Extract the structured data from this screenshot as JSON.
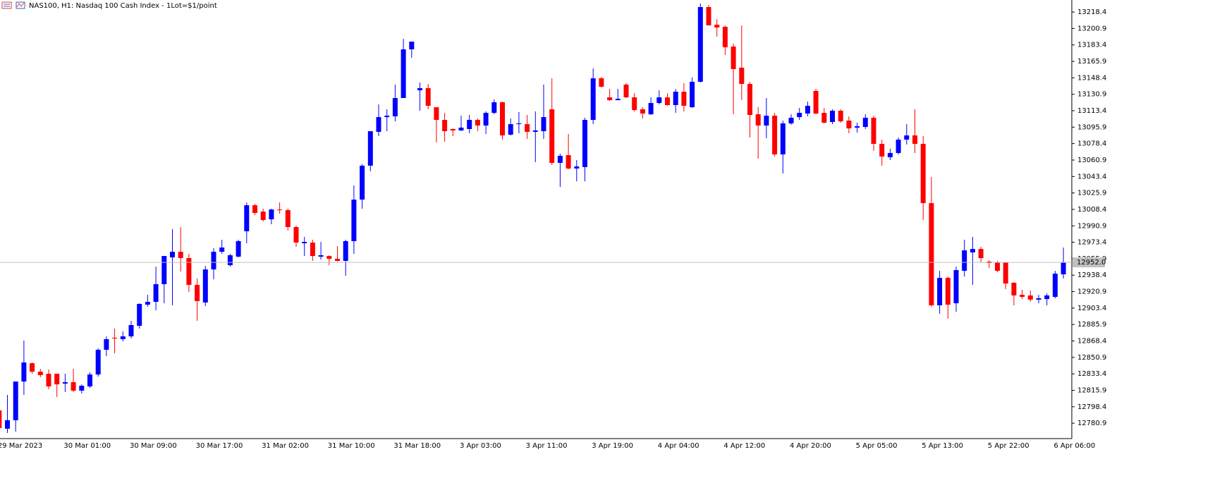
{
  "chart_data": {
    "type": "candlestick",
    "title": "NAS100, H1:  Nasdaq 100 Cash Index - 1Lot=$1/point",
    "up_color": "#0000ff",
    "down_color": "#ff0000",
    "current_price": {
      "value": 12952.0,
      "label": "12952.0"
    },
    "ylim": [
      12764.5,
      13231.2
    ],
    "yticks": [
      12780.9,
      12798.4,
      12815.9,
      12833.4,
      12850.9,
      12868.4,
      12885.9,
      12903.4,
      12920.9,
      12938.4,
      12955.9,
      12973.4,
      12990.9,
      13008.4,
      13025.9,
      13043.4,
      13060.9,
      13078.4,
      13095.9,
      13113.4,
      13130.9,
      13148.4,
      13165.9,
      13183.4,
      13200.9,
      13218.4
    ],
    "categories": [
      "29 Mar 2023",
      null,
      null,
      null,
      null,
      null,
      null,
      null,
      "30 Mar 01:00",
      null,
      null,
      null,
      null,
      null,
      null,
      null,
      "30 Mar 09:00",
      null,
      null,
      null,
      null,
      null,
      null,
      null,
      "30 Mar 17:00",
      null,
      null,
      null,
      null,
      null,
      null,
      null,
      "31 Mar 02:00",
      null,
      null,
      null,
      null,
      null,
      null,
      null,
      "31 Mar 10:00",
      null,
      null,
      null,
      null,
      null,
      null,
      null,
      "31 Mar 18:00",
      null,
      null,
      null,
      null,
      null,
      null,
      null,
      "3 Apr 03:00",
      null,
      null,
      null,
      null,
      null,
      null,
      null,
      "3 Apr 11:00",
      null,
      null,
      null,
      null,
      null,
      null,
      null,
      "3 Apr 19:00",
      null,
      null,
      null,
      null,
      null,
      null,
      null,
      "4 Apr 04:00",
      null,
      null,
      null,
      null,
      null,
      null,
      null,
      "4 Apr 12:00",
      null,
      null,
      null,
      null,
      null,
      null,
      null,
      "4 Apr 20:00",
      null,
      null,
      null,
      null,
      null,
      null,
      null,
      "5 Apr 05:00",
      null,
      null,
      null,
      null,
      null,
      null,
      null,
      "5 Apr 13:00",
      null,
      null,
      null,
      null,
      null,
      null,
      null,
      "5 Apr 22:00",
      null,
      null,
      null,
      null,
      null,
      null,
      null,
      "6 Apr 06:00",
      null
    ],
    "open": [
      12794.5,
      12775.0,
      12784.0,
      12825.2,
      12844.7,
      12835.7,
      12833.5,
      12833.5,
      12823.0,
      12824.5,
      12815.5,
      12820.0,
      12832.7,
      12859.0,
      12871.8,
      12870.3,
      12873.3,
      12884.5,
      12907.0,
      12910.0,
      12928.8,
      12957.3,
      12963.3,
      12956.6,
      12928.0,
      12909.3,
      12944.5,
      12963.3,
      12949.0,
      12958.1,
      12985.1,
      13012.8,
      13006.1,
      12997.8,
      13008.3,
      13007.6,
      12989.6,
      12972.3,
      12973.1,
      12958.1,
      12958.8,
      12955.8,
      12953.6,
      12974.6,
      13018.8,
      13054.9,
      13090.9,
      13106.6,
      13107.4,
      13126.9,
      13178.7,
      13135.1,
      13137.4,
      13117.1,
      13103.6,
      13093.9,
      13092.4,
      13093.9,
      13103.6,
      13097.6,
      13111.1,
      13122.4,
      13087.9,
      13099.1,
      13099.1,
      13090.9,
      13091.6,
      13114.9,
      13057.9,
      13066.1,
      13051.9,
      13053.4,
      13103.6,
      13147.9,
      13127.6,
      13124.6,
      13141.2,
      13127.6,
      13114.9,
      13109.6,
      13121.6,
      13127.6,
      13119.4,
      13133.6,
      13117.1,
      13144.2,
      13223.7,
      13204.9,
      13202.7,
      13181.7,
      13159.2,
      13141.9,
      13109.6,
      13097.6,
      13108.1,
      13066.9,
      13099.9,
      13106.6,
      13110.4,
      13134.4,
      13111.1,
      13101.4,
      13113.4,
      13102.9,
      13095.4,
      13096.1,
      13105.9,
      13078.1,
      13063.9,
      13068.4,
      13082.6,
      13087.1,
      13078.1,
      13015.1,
      12906.3,
      12935.5,
      12908.5,
      12943.0,
      12962.6,
      12966.3,
      12952.8,
      12952.1,
      12952.1,
      12930.3,
      12917.5,
      12916.8,
      12912.3,
      12913.0,
      12915.3,
      12939.3
    ],
    "high": [
      12796.0,
      12811.0,
      12825.2,
      12868.8,
      12845.5,
      12838.7,
      12838.0,
      12833.5,
      12833.5,
      12838.7,
      12822.2,
      12835.0,
      12860.5,
      12873.3,
      12881.5,
      12878.5,
      12889.8,
      12908.5,
      12917.5,
      12947.5,
      12958.8,
      12987.3,
      12989.6,
      12961.1,
      12934.8,
      12948.3,
      12967.1,
      12976.1,
      12961.1,
      12976.1,
      13015.8,
      13014.3,
      13009.1,
      13009.1,
      13015.8,
      13009.1,
      12991.1,
      12979.1,
      12976.1,
      12973.8,
      12959.6,
      12969.3,
      12976.1,
      13033.8,
      13056.4,
      13091.6,
      13120.1,
      13114.9,
      13141.2,
      13189.9,
      13186.9,
      13143.4,
      13141.9,
      13117.1,
      13111.1,
      13094.6,
      13108.1,
      13108.9,
      13105.1,
      13112.6,
      13125.4,
      13123.1,
      13105.1,
      13111.9,
      13108.9,
      13112.6,
      13141.2,
      13147.9,
      13067.6,
      13088.6,
      13060.9,
      13105.9,
      13158.4,
      13149.4,
      13136.6,
      13136.6,
      13142.7,
      13132.1,
      13117.1,
      13127.6,
      13135.1,
      13132.1,
      13136.6,
      13142.7,
      13148.7,
      13227.5,
      13225.9,
      13210.9,
      13204.2,
      13184.7,
      13204.2,
      13144.2,
      13117.1,
      13126.9,
      13111.1,
      13102.9,
      13109.6,
      13116.4,
      13123.1,
      13136.6,
      13116.4,
      13114.9,
      13114.9,
      13107.4,
      13100.6,
      13109.6,
      13108.1,
      13082.6,
      13072.9,
      13084.9,
      13099.1,
      13114.9,
      13086.4,
      13042.8,
      12943.0,
      12937.0,
      12947.5,
      12976.1,
      12979.1,
      12968.6,
      12954.3,
      12953.6,
      12952.1,
      12931.0,
      12922.8,
      12922.0,
      12917.5,
      12919.0,
      12943.0,
      12967.8
    ],
    "low": [
      12774.2,
      12770.5,
      12772.0,
      12811.0,
      12833.5,
      12829.7,
      12817.0,
      12808.7,
      12814.0,
      12814.0,
      12812.5,
      12818.5,
      12830.5,
      12852.2,
      12855.3,
      12868.0,
      12871.0,
      12881.5,
      12904.8,
      12901.0,
      12908.5,
      12906.3,
      12942.3,
      12920.5,
      12889.8,
      12905.5,
      12934.0,
      12961.1,
      12947.5,
      12957.3,
      12972.3,
      13002.3,
      12995.6,
      12992.6,
      13003.8,
      12985.8,
      12968.6,
      12958.8,
      12953.6,
      12955.1,
      12949.0,
      12952.8,
      12937.8,
      12961.1,
      13009.1,
      13048.9,
      13086.4,
      13091.6,
      13102.1,
      13126.9,
      13169.7,
      13113.4,
      13114.9,
      13079.6,
      13080.4,
      13086.4,
      13091.6,
      13089.4,
      13091.6,
      13088.6,
      13109.6,
      13082.6,
      13087.1,
      13089.4,
      13083.4,
      13058.6,
      13083.4,
      13055.6,
      13032.3,
      13051.1,
      13038.3,
      13038.3,
      13099.1,
      13138.2,
      13123.9,
      13124.6,
      13126.9,
      13112.6,
      13105.1,
      13108.9,
      13120.1,
      13118.6,
      13111.1,
      13112.6,
      13116.4,
      13143.4,
      13204.2,
      13192.2,
      13172.7,
      13109.6,
      13124.6,
      13084.9,
      13062.4,
      13084.1,
      13064.6,
      13046.6,
      13098.4,
      13103.6,
      13107.4,
      13109.6,
      13099.9,
      13099.1,
      13100.6,
      13089.4,
      13090.1,
      13093.9,
      13070.6,
      13054.9,
      13060.9,
      13066.9,
      13077.4,
      13068.4,
      12997.1,
      12904.8,
      12897.3,
      12892.0,
      12899.5,
      12937.0,
      12928.0,
      12952.1,
      12946.0,
      12941.5,
      12923.5,
      12906.3,
      12913.0,
      12910.0,
      12908.5,
      12906.3,
      12913.8,
      12934.8
    ],
    "close": [
      12775.7,
      12784.0,
      12825.2,
      12845.5,
      12835.7,
      12832.0,
      12820.0,
      12822.2,
      12824.5,
      12815.5,
      12820.7,
      12832.7,
      12859.0,
      12870.3,
      12871.0,
      12873.3,
      12885.3,
      12907.8,
      12910.0,
      12928.8,
      12958.8,
      12963.3,
      12956.6,
      12928.0,
      12910.8,
      12944.5,
      12963.3,
      12967.8,
      12959.6,
      12974.6,
      13012.8,
      13004.6,
      12997.1,
      13008.3,
      13007.6,
      12989.6,
      12973.1,
      12973.8,
      12958.8,
      12959.6,
      12955.8,
      12953.6,
      12974.6,
      13018.8,
      13054.9,
      13091.6,
      13106.6,
      13108.1,
      13126.9,
      13178.7,
      13186.9,
      13137.4,
      13118.6,
      13103.6,
      13091.6,
      13092.4,
      13095.4,
      13103.6,
      13097.6,
      13111.1,
      13122.4,
      13087.1,
      13099.1,
      13099.9,
      13090.9,
      13092.4,
      13106.6,
      13057.9,
      13065.4,
      13051.9,
      13054.1,
      13103.6,
      13147.9,
      13138.9,
      13124.6,
      13126.1,
      13127.6,
      13114.1,
      13110.4,
      13121.6,
      13127.6,
      13119.4,
      13133.6,
      13118.6,
      13144.2,
      13223.7,
      13204.2,
      13201.9,
      13180.9,
      13157.7,
      13141.9,
      13108.9,
      13097.6,
      13108.1,
      13066.9,
      13099.9,
      13105.9,
      13111.1,
      13118.6,
      13110.4,
      13100.6,
      13113.4,
      13102.1,
      13094.6,
      13096.9,
      13105.9,
      13078.1,
      13064.6,
      13068.4,
      13082.6,
      13087.1,
      13078.1,
      13015.1,
      12906.3,
      12935.5,
      12907.0,
      12943.8,
      12964.8,
      12966.3,
      12956.6,
      12951.3,
      12943.0,
      12929.5,
      12916.8,
      12915.3,
      12912.3,
      12913.8,
      12916.8,
      12940.0,
      12952.0
    ]
  }
}
